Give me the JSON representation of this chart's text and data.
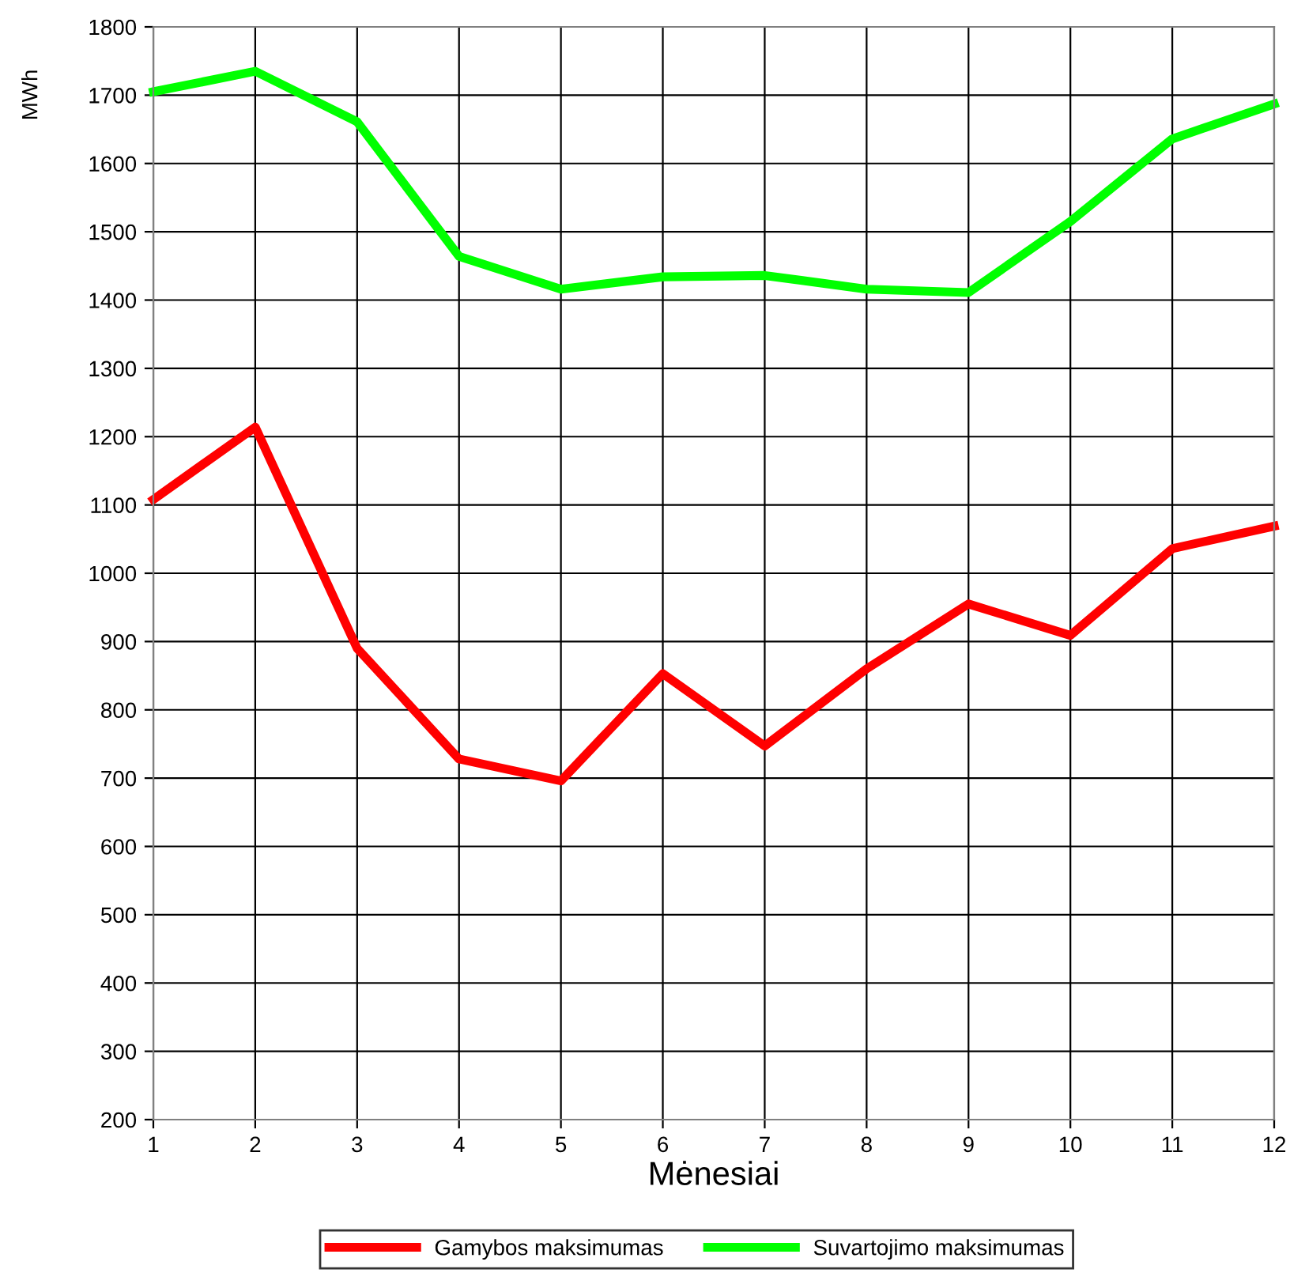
{
  "chart_data": {
    "type": "line",
    "xlabel": "Mėnesiai",
    "ylabel": "MWh",
    "x": [
      1,
      2,
      3,
      4,
      5,
      6,
      7,
      8,
      9,
      10,
      11,
      12
    ],
    "series": [
      {
        "name": "Gamybos maksimumas",
        "color": "#ff0000",
        "values": [
          1108,
          1214,
          890,
          728,
          696,
          853,
          747,
          860,
          955,
          909,
          1036,
          1069
        ]
      },
      {
        "name": "Suvartojimo maksimumas",
        "color": "#00ff00",
        "values": [
          1705,
          1735,
          1661,
          1464,
          1416,
          1434,
          1436,
          1416,
          1411,
          1515,
          1636,
          1687
        ]
      }
    ],
    "xlim": [
      1,
      12
    ],
    "xticks": [
      1,
      2,
      3,
      4,
      5,
      6,
      7,
      8,
      9,
      10,
      11,
      12
    ],
    "ylim": [
      200,
      1800
    ],
    "yticks": [
      200,
      300,
      400,
      500,
      600,
      700,
      800,
      900,
      1000,
      1100,
      1200,
      1300,
      1400,
      1500,
      1600,
      1700,
      1800
    ],
    "grid": true,
    "legend": "bottom",
    "marker": "none",
    "line_style": "solid"
  }
}
